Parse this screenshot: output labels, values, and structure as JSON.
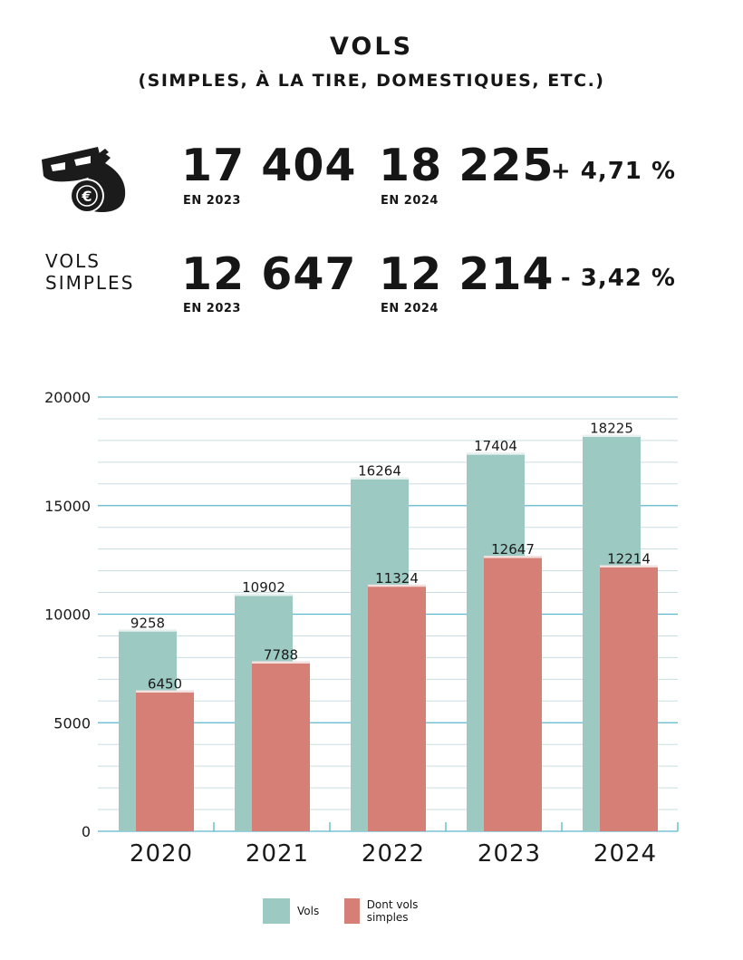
{
  "header": {
    "title": "VOLS",
    "subtitle": "(SIMPLES, À LA TIRE, DOMESTIQUES, ETC.)"
  },
  "stats": {
    "row1": {
      "value_2023": "17 404",
      "label_2023": "EN 2023",
      "value_2024": "18 225",
      "label_2024": "EN 2024",
      "change": "+ 4,71 %"
    },
    "row2": {
      "label_line1": "VOLS",
      "label_line2": "SIMPLES",
      "value_2023": "12 647",
      "label_2023": "EN 2023",
      "value_2024": "12 214",
      "label_2024": "EN 2024",
      "change": "- 3,42 %"
    },
    "icon": "mask-and-money-bag-icon"
  },
  "chart_data": {
    "type": "bar",
    "categories": [
      "2020",
      "2021",
      "2022",
      "2023",
      "2024"
    ],
    "series": [
      {
        "name": "Vols",
        "values": [
          9258,
          10902,
          16264,
          17404,
          18225
        ],
        "color": "#9ccac2"
      },
      {
        "name": "Dont vols simples",
        "values": [
          6450,
          7788,
          11324,
          12647,
          12214
        ],
        "color": "#d57f76"
      }
    ],
    "y_ticks": [
      "0",
      "5000",
      "10000",
      "15000",
      "20000"
    ],
    "ylim": [
      0,
      20000
    ],
    "grid": true,
    "legend_position": "bottom",
    "colors": {
      "grid_major": "#5ab7cc",
      "grid_minor": "#c9dde3"
    }
  }
}
